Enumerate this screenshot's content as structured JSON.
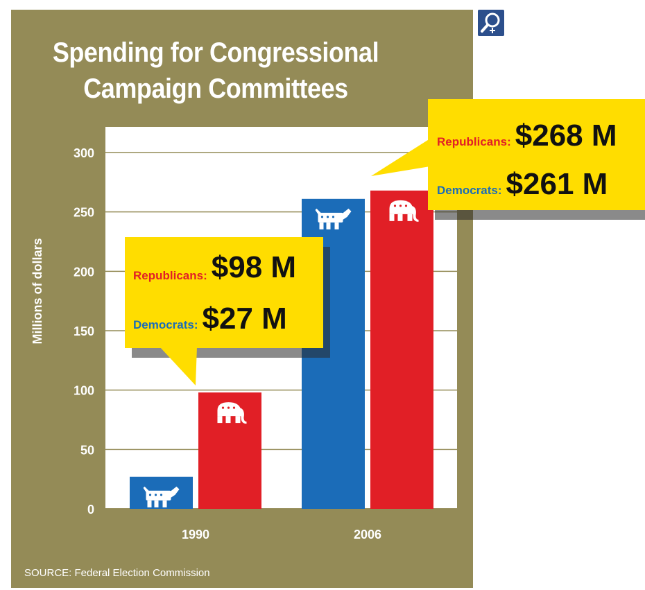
{
  "chart_data": {
    "type": "bar",
    "title": "Spending for Congressional Campaign Committees",
    "ylabel": "Millions of dollars",
    "xlabel": "",
    "categories": [
      "1990",
      "2006"
    ],
    "series": [
      {
        "name": "Democrats",
        "values": [
          27,
          261
        ],
        "color": "#1b6cb8",
        "icon": "donkey-icon"
      },
      {
        "name": "Republicans",
        "values": [
          98,
          268
        ],
        "color": "#e11f26",
        "icon": "elephant-icon"
      }
    ],
    "ylim": [
      0,
      300
    ],
    "yticks": [
      0,
      50,
      100,
      150,
      200,
      250,
      300
    ],
    "grid": true,
    "callouts": [
      {
        "category": "1990",
        "republicans_label": "Republicans:",
        "republicans_value": "$98 M",
        "democrats_label": "Democrats:",
        "democrats_value": "$27 M"
      },
      {
        "category": "2006",
        "republicans_label": "Republicans:",
        "republicans_value": "$268 M",
        "democrats_label": "Democrats:",
        "democrats_value": "$261 M"
      }
    ],
    "source": "SOURCE:  Federal Election Commission"
  },
  "colors": {
    "frame": "#948b57",
    "plot_background": "#ffffff",
    "callout": "#ffdd00",
    "republicans": "#e11f26",
    "democrats": "#1b6cb8"
  },
  "toolbar": {
    "zoom_icon": "magnifier-zoom-icon"
  }
}
